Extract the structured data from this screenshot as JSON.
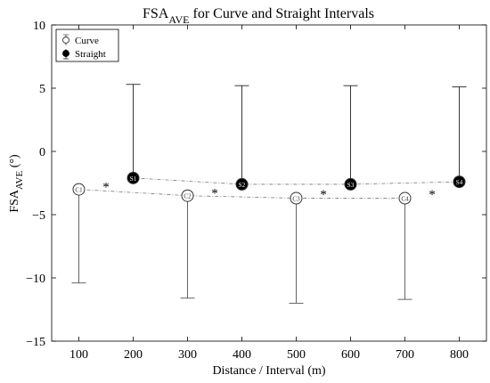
{
  "chart_data": {
    "type": "scatter",
    "title_main": "FSA",
    "title_sub": "AVE",
    "title_rest": " for Curve and Straight Intervals",
    "xlabel": "Distance / Interval (m)",
    "ylabel_main": "FSA",
    "ylabel_sub": "AVE",
    "ylabel_rest": " (°)",
    "xlim": [
      50,
      850
    ],
    "ylim": [
      -15,
      10
    ],
    "xticks": [
      100,
      200,
      300,
      400,
      500,
      600,
      700,
      800
    ],
    "yticks": [
      -15,
      -10,
      -5,
      0,
      5,
      10
    ],
    "legend_position": "top-left",
    "grid": false,
    "series": [
      {
        "name": "Curve",
        "marker": "open-circle",
        "labels": [
          "C1",
          "C2",
          "C3",
          "C4"
        ],
        "x": [
          100,
          300,
          500,
          700
        ],
        "y": [
          -3.0,
          -3.5,
          -3.7,
          -3.7
        ],
        "error_lower": [
          -10.4,
          -11.6,
          -12.0,
          -11.7
        ],
        "whisker_color": "#555555"
      },
      {
        "name": "Straight",
        "marker": "filled-circle",
        "labels": [
          "S1",
          "S2",
          "S3",
          "S4"
        ],
        "x": [
          200,
          400,
          600,
          800
        ],
        "y": [
          -2.1,
          -2.6,
          -2.6,
          -2.4
        ],
        "error_upper": [
          5.3,
          5.2,
          5.2,
          5.1
        ],
        "whisker_color": "#222222"
      }
    ],
    "annotations": [
      {
        "text": "*",
        "x": 150,
        "y": -2.5
      },
      {
        "text": "*",
        "x": 350,
        "y": -3.0
      },
      {
        "text": "*",
        "x": 550,
        "y": -3.1
      },
      {
        "text": "*",
        "x": 750,
        "y": -3.1
      }
    ]
  }
}
